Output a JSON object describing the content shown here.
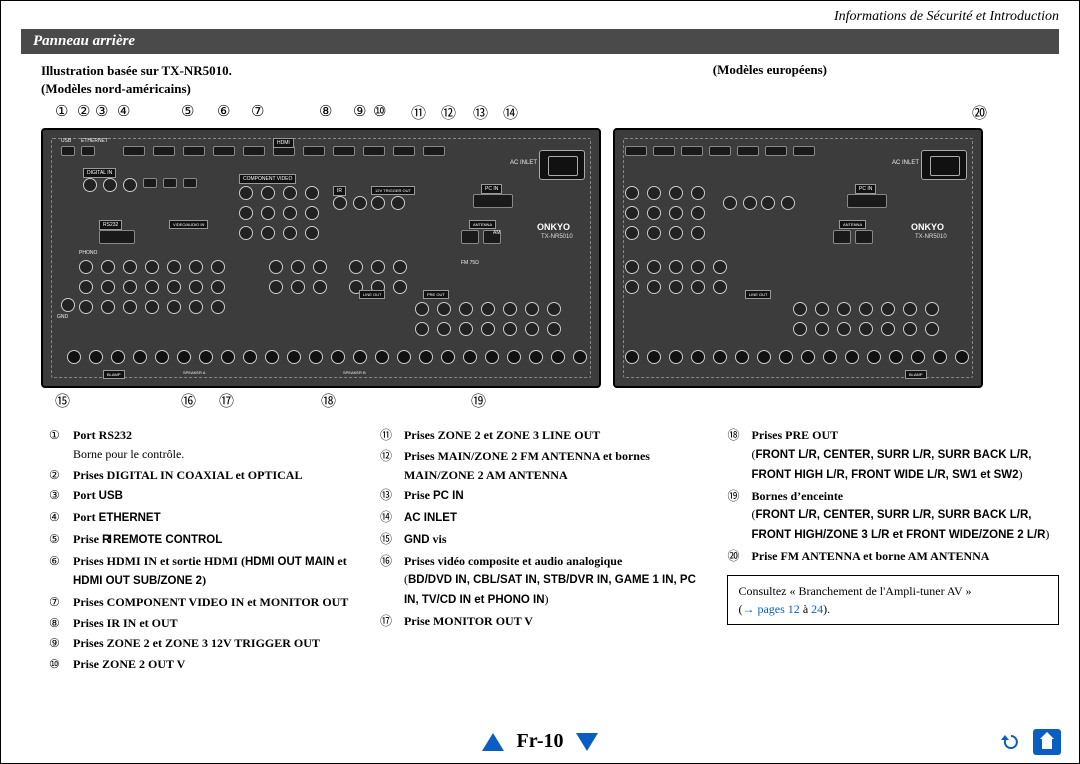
{
  "header": {
    "doc_section": "Informations de Sécurité et Introduction",
    "title_bar": "Panneau arrière"
  },
  "captions": {
    "illustration": "Illustration basée sur TX-NR5010.",
    "left_model": "(Modèles nord-américains)",
    "right_model": "(Modèles européens)"
  },
  "callouts_top_na": [
    "①",
    "②",
    "③",
    "④",
    "⑤",
    "⑥",
    "⑦",
    "⑧",
    "⑨",
    "⑩",
    "⑪",
    "⑫",
    "⑬",
    "⑭"
  ],
  "callouts_bottom_na": [
    "⑮",
    "⑯",
    "⑰",
    "⑱",
    "⑲"
  ],
  "callout_eu": "⑳",
  "panel": {
    "brand": "ONKYO",
    "model": "TX-NR5010",
    "ac_label": "AC INLET",
    "rear_labels": [
      "USB",
      "ETHERNET",
      "HDMI",
      "DIGITAL IN",
      "COMPONENT VIDEO",
      "PC IN",
      "ANTENNA",
      "PRE OUT",
      "LINE OUT",
      "ZONE 2",
      "ZONE 3",
      "MAIN",
      "RS232",
      "VIDEO/AUDIO IN",
      "PHONO",
      "TV/CD",
      "GAME 1",
      "STB/DVR",
      "CBL/SAT",
      "BD/DVD",
      "SURR",
      "FRONT",
      "CENTER",
      "FRONT WIDE",
      "FRONT HIGH",
      "SURR BACK",
      "Bi-AMP",
      "SPEAKER A",
      "SPEAKER B",
      "12V TRIGGER OUT",
      "IR",
      "GND",
      "FM 75Ω",
      "AM"
    ]
  },
  "legend": {
    "col1": [
      {
        "n": "①",
        "bold": "Port RS232",
        "plain": "Borne pour le contrôle."
      },
      {
        "n": "②",
        "bold": "Prises DIGITAL IN COAXIAL et OPTICAL"
      },
      {
        "n": "③",
        "bold": "Port ",
        "sans": "USB"
      },
      {
        "n": "④",
        "bold": "Port ",
        "sans": "ETHERNET"
      },
      {
        "n": "⑤",
        "bold": "Prise ",
        "remote": "RI",
        "bold2": " REMOTE CONTROL"
      },
      {
        "n": "⑥",
        "bold": "Prises HDMI IN et sortie HDMI (",
        "sans": "HDMI OUT MAIN",
        "bold2": " et ",
        "sans2": "HDMI OUT SUB/ZONE 2",
        "bold3": ")"
      },
      {
        "n": "⑦",
        "bold": "Prises COMPONENT VIDEO IN et MONITOR OUT"
      },
      {
        "n": "⑧",
        "bold": "Prises IR IN et OUT"
      },
      {
        "n": "⑨",
        "bold": "Prises ZONE 2 et ZONE 3 12V TRIGGER OUT"
      },
      {
        "n": "⑩",
        "bold": "Prise ZONE 2 OUT V"
      }
    ],
    "col2": [
      {
        "n": "⑪",
        "bold": "Prises ZONE 2 et ZONE 3 LINE OUT"
      },
      {
        "n": "⑫",
        "bold": "Prises MAIN/ZONE 2 FM ANTENNA et bornes MAIN/ZONE 2 AM ANTENNA"
      },
      {
        "n": "⑬",
        "bold": "Prise ",
        "sans": "PC IN"
      },
      {
        "n": "⑭",
        "sans": "AC INLET"
      },
      {
        "n": "⑮",
        "sans": "GND",
        "bold": " vis"
      },
      {
        "n": "⑯",
        "bold": "Prises vidéo composite et audio analogique",
        "plain2": "(",
        "sans": "BD/DVD IN, CBL/SAT IN, STB/DVR IN, GAME 1 IN, PC IN, TV/CD IN et PHONO IN",
        "plain3": ")"
      },
      {
        "n": "⑰",
        "bold": "Prise MONITOR OUT V"
      }
    ],
    "col3": [
      {
        "n": "⑱",
        "bold": "Prises PRE OUT",
        "plain2": "(",
        "sans": "FRONT L/R, CENTER, SURR L/R, SURR BACK L/R, FRONT HIGH L/R, FRONT WIDE L/R, SW1 et SW2",
        "plain3": ")"
      },
      {
        "n": "⑲",
        "bold": "Bornes d'enceinte",
        "plain2": "(",
        "sans": "FRONT L/R, CENTER, SURR L/R, SURR BACK L/R, FRONT HIGH/ZONE 3 L/R et FRONT WIDE/ZONE 2 L/R",
        "plain3": ")"
      },
      {
        "n": "⑳",
        "bold": "Prise FM ANTENNA et borne AM ANTENNA"
      }
    ]
  },
  "note": {
    "text": "Consultez « Branchement de l'Ampli-tuner AV »",
    "arrow": "→",
    "link": "pages 12",
    "tail1": " à ",
    "link2": "24",
    "tail2": ".",
    "paren_open": "(",
    "paren_close": ")"
  },
  "footer": {
    "page": "Fr-10"
  },
  "colors": {
    "section_bg": "#4a4a4a",
    "panel_bg": "#3c3c3c",
    "accent": "#0a5ec2"
  }
}
